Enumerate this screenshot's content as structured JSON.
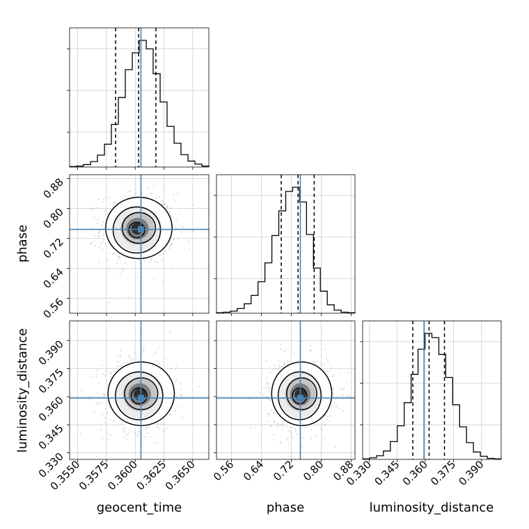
{
  "chart_data": {
    "type": "corner",
    "parameters": [
      {
        "name": "geocent_time",
        "label": "geocent_time",
        "range": [
          0.3543,
          0.3664
        ],
        "ticks": [
          0.355,
          0.3575,
          0.36,
          0.3625,
          0.365
        ],
        "tick_labels": [
          "0.3550",
          "0.3575",
          "0.3600",
          "0.3625",
          "0.3650"
        ],
        "truth": 0.3605,
        "quantiles": [
          0.3583,
          0.3603,
          0.3618
        ]
      },
      {
        "name": "phase",
        "label": "phase",
        "range": [
          0.52,
          0.89
        ],
        "ticks": [
          0.56,
          0.64,
          0.72,
          0.8,
          0.88
        ],
        "tick_labels": [
          "0.56",
          "0.64",
          "0.72",
          "0.80",
          "0.88"
        ],
        "truth": 0.744,
        "quantiles": [
          0.693,
          0.738,
          0.781
        ]
      },
      {
        "name": "luminosity_distance",
        "label": "luminosity_distance",
        "range": [
          0.3265,
          0.4005
        ],
        "ticks": [
          0.33,
          0.345,
          0.36,
          0.375,
          0.39
        ],
        "tick_labels": [
          "0.330",
          "0.345",
          "0.360",
          "0.375",
          "0.390"
        ],
        "truth": 0.3593,
        "quantiles": [
          0.3533,
          0.362,
          0.3702
        ]
      }
    ],
    "histograms": [
      {
        "param": "geocent_time",
        "bins": [
          0.3543,
          0.35491,
          0.35551,
          0.35612,
          0.35672,
          0.35733,
          0.35793,
          0.35854,
          0.35914,
          0.35975,
          0.36035,
          0.36096,
          0.36156,
          0.36217,
          0.36277,
          0.36338,
          0.36398,
          0.36459,
          0.36519,
          0.3658,
          0.3664
        ],
        "counts": [
          1,
          2,
          5,
          11,
          24,
          46,
          86,
          140,
          196,
          230,
          255,
          238,
          188,
          131,
          82,
          48,
          25,
          12,
          6,
          2
        ]
      },
      {
        "param": "phase",
        "bins": [
          0.52,
          0.5385,
          0.557,
          0.5755,
          0.594,
          0.6125,
          0.631,
          0.6495,
          0.668,
          0.6865,
          0.705,
          0.7235,
          0.742,
          0.7605,
          0.779,
          0.7975,
          0.816,
          0.8345,
          0.853,
          0.8715,
          0.89
        ],
        "counts": [
          1,
          2,
          4,
          9,
          18,
          34,
          60,
          96,
          148,
          195,
          232,
          240,
          212,
          150,
          86,
          42,
          16,
          6,
          2,
          1
        ]
      },
      {
        "param": "luminosity_distance",
        "bins": [
          0.3265,
          0.3302,
          0.3339,
          0.3376,
          0.3413,
          0.345,
          0.3487,
          0.3524,
          0.3561,
          0.3598,
          0.3635,
          0.3672,
          0.3709,
          0.3746,
          0.3783,
          0.382,
          0.3857,
          0.3894,
          0.3931,
          0.3968,
          0.4005
        ],
        "counts": [
          1,
          3,
          7,
          16,
          34,
          64,
          108,
          162,
          210,
          240,
          232,
          200,
          156,
          104,
          62,
          32,
          14,
          6,
          2,
          1
        ]
      }
    ],
    "contours": [
      {
        "x": "geocent_time",
        "y": "phase",
        "center": [
          0.3602,
          0.746
        ],
        "sigma": [
          0.0014,
          0.041
        ],
        "levels": [
          0.5,
          1.0,
          1.5,
          2.0
        ]
      },
      {
        "x": "geocent_time",
        "y": "luminosity_distance",
        "center": [
          0.3604,
          0.3612
        ],
        "sigma": [
          0.0014,
          0.0085
        ],
        "levels": [
          0.5,
          1.0,
          1.5,
          2.0
        ]
      },
      {
        "x": "phase",
        "y": "luminosity_distance",
        "center": [
          0.744,
          0.3612
        ],
        "sigma": [
          0.039,
          0.0085
        ],
        "levels": [
          0.5,
          1.0,
          1.5,
          2.0
        ]
      }
    ],
    "truth_color": "#4682b4",
    "grid": true
  }
}
